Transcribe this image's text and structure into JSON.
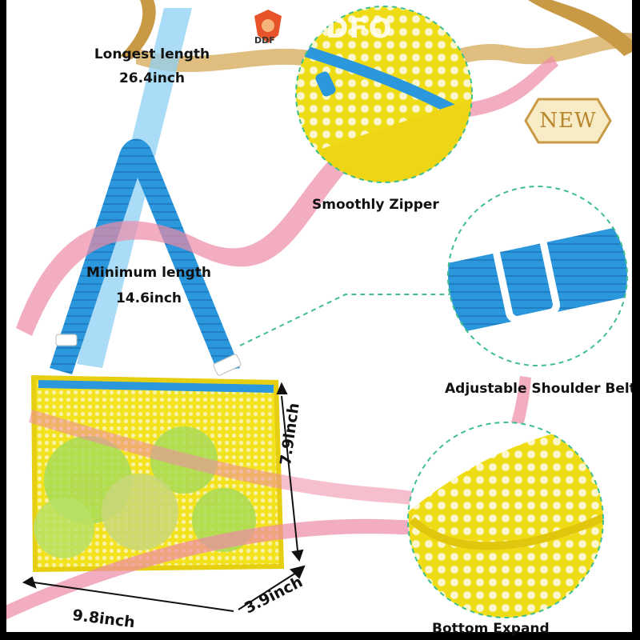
{
  "brand": {
    "logo_text": "DDF",
    "ghost_text": "DDFO"
  },
  "badge": {
    "text": "NEW"
  },
  "labels": {
    "longest_title": "Longest length",
    "longest_value": "26.4inch",
    "minimum_title": "Minimum length",
    "minimum_value": "14.6inch",
    "zipper": "Smoothly Zipper",
    "strap": "Adjustable Shoulder Belt",
    "bottom": "Bottom Expand",
    "height": "7.9inch",
    "width": "9.8inch",
    "depth": "3.9inch"
  },
  "colors": {
    "mesh_yellow": "#f2e21f",
    "strap_blue": "#2f9be0",
    "strap_light": "#8fd0f4",
    "ribbon_pink": "#ee8aa6",
    "gold": "#c99a45",
    "dashed_green": "#3fbf8f",
    "ball_green": "#9fd84a"
  }
}
